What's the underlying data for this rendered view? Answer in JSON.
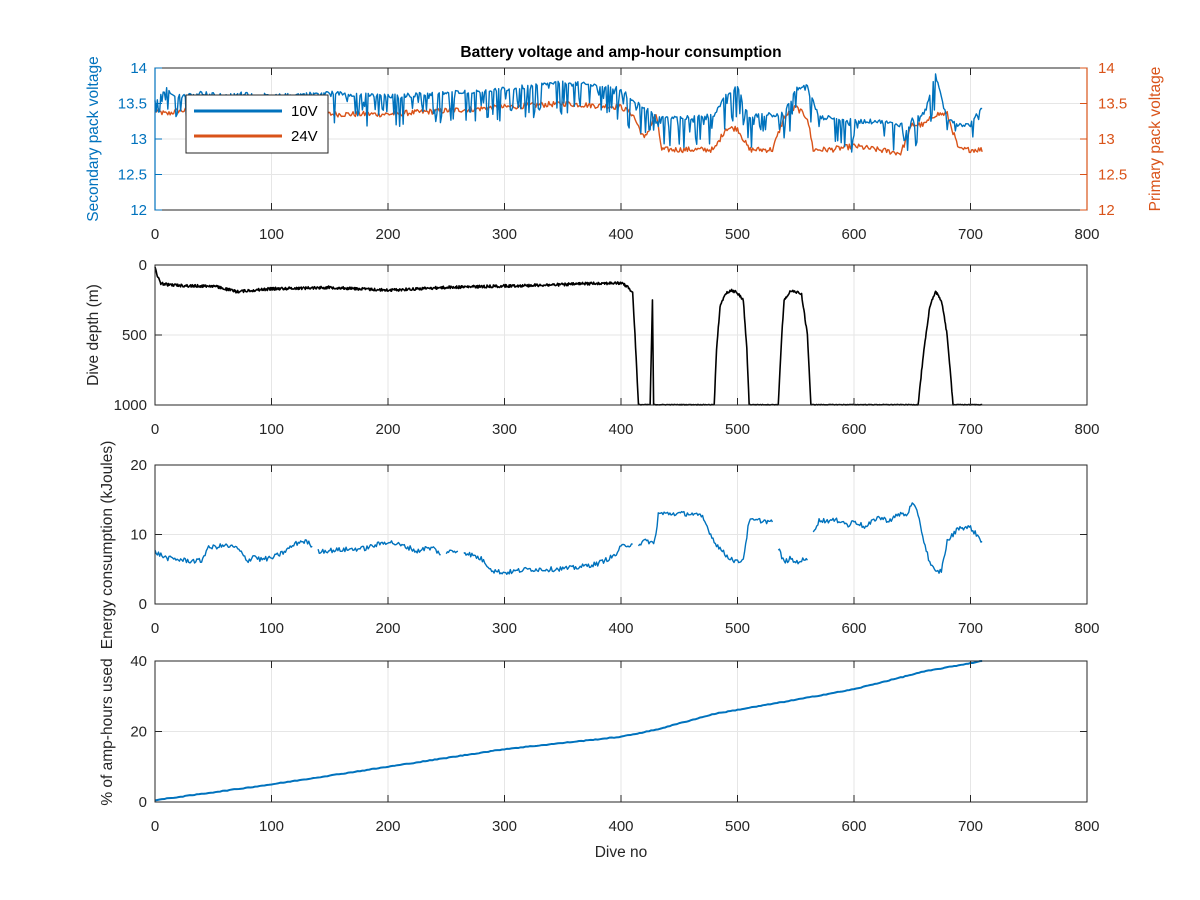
{
  "figure": {
    "title": "Battery voltage and amp-hour consumption",
    "colors": {
      "blue": "#0072BD",
      "orange": "#D95319",
      "black": "#000000",
      "grid": "#e6e6e6",
      "axis": "#262626"
    }
  },
  "chart_data": [
    {
      "type": "line",
      "title": "Battery voltage and amp-hour consumption",
      "xlabel": "",
      "ylabel_left": "Secondary pack voltage",
      "ylabel_right": "Primary pack voltage",
      "xlim": [
        0,
        800
      ],
      "ylim_left": [
        12,
        14
      ],
      "ylim_right": [
        12,
        14
      ],
      "xticks": [
        "0",
        "100",
        "200",
        "300",
        "400",
        "500",
        "600",
        "700",
        "800"
      ],
      "yticks_left": [
        "12",
        "12.5",
        "13",
        "13.5",
        "14"
      ],
      "yticks_right": [
        "12",
        "12.5",
        "13",
        "13.5",
        "14"
      ],
      "grid": true,
      "legend_position": "top-left",
      "series": [
        {
          "name": "10V",
          "color": "#0072BD",
          "x": [
            0,
            10,
            20,
            40,
            60,
            80,
            100,
            150,
            200,
            250,
            300,
            350,
            380,
            400,
            410,
            420,
            430,
            440,
            460,
            480,
            490,
            500,
            510,
            520,
            530,
            540,
            550,
            560,
            570,
            580,
            600,
            620,
            640,
            660,
            670,
            680,
            690,
            700,
            710
          ],
          "y": [
            13.55,
            13.7,
            13.6,
            13.65,
            13.6,
            13.65,
            13.6,
            13.65,
            13.6,
            13.65,
            13.7,
            13.8,
            13.75,
            13.7,
            13.55,
            13.45,
            13.3,
            13.3,
            13.3,
            13.35,
            13.6,
            13.75,
            13.3,
            13.35,
            13.35,
            13.35,
            13.7,
            13.75,
            13.3,
            13.3,
            13.25,
            13.25,
            13.2,
            13.35,
            13.9,
            13.3,
            13.2,
            13.2,
            13.45
          ],
          "noise": 0.28
        },
        {
          "name": "24V",
          "color": "#D95319",
          "x": [
            0,
            10,
            20,
            50,
            100,
            150,
            200,
            250,
            300,
            350,
            400,
            410,
            420,
            430,
            435,
            440,
            460,
            480,
            490,
            500,
            510,
            520,
            530,
            540,
            550,
            560,
            565,
            570,
            580,
            600,
            620,
            640,
            650,
            660,
            670,
            680,
            690,
            700,
            710
          ],
          "y": [
            13.4,
            13.35,
            13.4,
            13.4,
            13.35,
            13.35,
            13.35,
            13.4,
            13.45,
            13.5,
            13.45,
            13.35,
            13.0,
            13.35,
            12.85,
            12.85,
            12.85,
            12.85,
            13.15,
            13.15,
            12.85,
            12.85,
            12.85,
            13.3,
            13.45,
            13.3,
            12.85,
            12.85,
            12.85,
            12.9,
            12.85,
            12.8,
            13.2,
            13.2,
            13.35,
            13.35,
            12.85,
            12.85,
            12.85
          ],
          "noise": 0.04
        }
      ]
    },
    {
      "type": "line",
      "xlabel": "",
      "ylabel": "Dive depth (m)",
      "xlim": [
        0,
        800
      ],
      "ylim": [
        0,
        1000
      ],
      "y_reversed": true,
      "xticks": [
        "0",
        "100",
        "200",
        "300",
        "400",
        "500",
        "600",
        "700",
        "800"
      ],
      "yticks": [
        "0",
        "500",
        "1000"
      ],
      "grid": true,
      "series": [
        {
          "color": "#000000",
          "x": [
            0,
            3,
            5,
            10,
            30,
            50,
            70,
            100,
            150,
            200,
            250,
            300,
            350,
            380,
            400,
            405,
            410,
            412,
            415,
            420,
            425,
            427,
            428,
            430,
            435,
            440,
            450,
            470,
            480,
            482,
            485,
            490,
            495,
            500,
            505,
            508,
            510,
            520,
            535,
            538,
            540,
            545,
            550,
            555,
            560,
            563,
            565,
            600,
            650,
            655,
            660,
            665,
            670,
            675,
            680,
            685,
            690,
            700,
            710
          ],
          "y": [
            20,
            100,
            130,
            140,
            150,
            150,
            190,
            170,
            160,
            180,
            160,
            150,
            140,
            130,
            130,
            150,
            200,
            500,
            1000,
            1000,
            1000,
            250,
            1000,
            1000,
            1000,
            1000,
            1000,
            1000,
            1000,
            600,
            300,
            200,
            180,
            200,
            250,
            600,
            1000,
            1000,
            1000,
            500,
            250,
            190,
            190,
            210,
            500,
            1000,
            1000,
            1000,
            1000,
            1000,
            600,
            300,
            190,
            250,
            500,
            1000,
            1000,
            1000,
            1000
          ],
          "noise": 5
        }
      ]
    },
    {
      "type": "line",
      "xlabel": "",
      "ylabel": "Energy consumption (kJoules)",
      "xlim": [
        0,
        800
      ],
      "ylim": [
        0,
        20
      ],
      "xticks": [
        "0",
        "100",
        "200",
        "300",
        "400",
        "500",
        "600",
        "700",
        "800"
      ],
      "yticks": [
        "0",
        "10",
        "20"
      ],
      "grid": true,
      "series": [
        {
          "color": "#0072BD",
          "segments": [
            {
              "x": [
                0,
                10,
                20,
                30,
                40,
                45,
                50,
                60,
                70,
                80,
                85,
                90,
                100,
                110,
                120,
                125,
                130,
                135
              ],
              "y": [
                7.5,
                6.6,
                6.4,
                6.2,
                6.2,
                8,
                8.2,
                8.4,
                8.1,
                6.2,
                7,
                6.4,
                6.6,
                7.4,
                8.6,
                9,
                9,
                8.3
              ]
            },
            {
              "x": [
                140,
                160,
                180,
                200,
                210,
                220,
                225,
                230,
                240,
                245
              ],
              "y": [
                7.6,
                7.8,
                8,
                9,
                8.5,
                8,
                7.5,
                8,
                8,
                7
              ]
            },
            {
              "x": [
                250,
                260
              ],
              "y": [
                7.5,
                7.6
              ]
            },
            {
              "x": [
                265,
                280,
                290,
                300,
                320,
                340,
                360,
                380,
                395,
                400,
                405,
                410
              ],
              "y": [
                7.5,
                6.5,
                4.8,
                4.5,
                5,
                5,
                5.2,
                5.8,
                7,
                8.2,
                8.5,
                8.6
              ]
            },
            {
              "x": [
                415,
                420,
                425,
                428,
                430,
                432,
                440,
                460,
                470,
                480,
                490,
                500,
                505,
                510,
                520,
                530
              ],
              "y": [
                8.6,
                9,
                9,
                8.6,
                10,
                13,
                13,
                13,
                12.5,
                9,
                7,
                6,
                6.5,
                12,
                12,
                11.8
              ]
            },
            {
              "x": [
                535,
                540,
                545,
                550,
                555,
                560
              ],
              "y": [
                8,
                6,
                6.5,
                6,
                6.3,
                6.3
              ]
            },
            {
              "x": [
                565,
                570,
                580,
                590,
                595,
                600,
                610,
                620,
                630,
                640,
                645,
                650,
                655,
                660,
                665,
                670,
                675,
                680,
                690,
                700,
                705,
                710
              ],
              "y": [
                10.5,
                12,
                12,
                12,
                11.2,
                12,
                11,
                12.5,
                12,
                13,
                12.8,
                14.4,
                13,
                9,
                6,
                4.5,
                4.8,
                9,
                11,
                11,
                10,
                9
              ]
            }
          ],
          "noise": 0.35
        }
      ]
    },
    {
      "type": "line",
      "xlabel": "Dive no",
      "ylabel": "% of amp-hours used",
      "xlim": [
        0,
        800
      ],
      "ylim": [
        0,
        40
      ],
      "xticks": [
        "0",
        "100",
        "200",
        "300",
        "400",
        "500",
        "600",
        "700",
        "800"
      ],
      "yticks": [
        "0",
        "20",
        "40"
      ],
      "grid": true,
      "series": [
        {
          "color": "#0072BD",
          "x": [
            0,
            100,
            200,
            300,
            400,
            430,
            480,
            550,
            600,
            660,
            710
          ],
          "y": [
            0.5,
            5,
            10,
            15,
            18.5,
            20.5,
            25,
            29,
            32,
            37,
            40
          ]
        }
      ]
    }
  ]
}
